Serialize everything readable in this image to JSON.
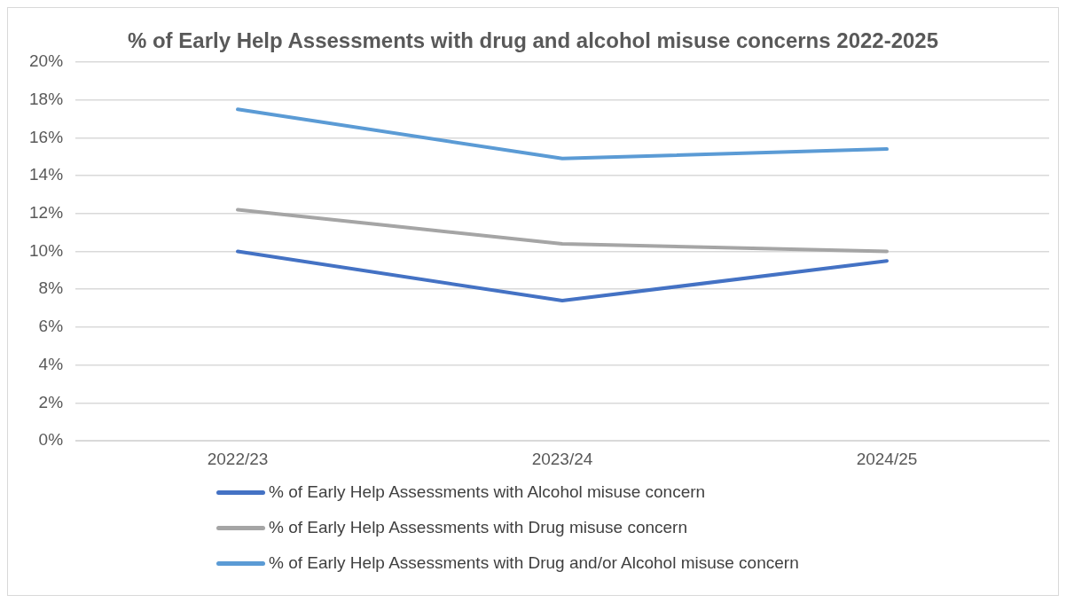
{
  "chart_data": {
    "type": "line",
    "title": "% of Early Help Assessments with drug and alcohol misuse concerns 2022-2025",
    "categories": [
      "2022/23",
      "2023/24",
      "2024/25"
    ],
    "series": [
      {
        "name": "% of Early Help Assessments with Alcohol misuse concern",
        "color": "#4472c4",
        "values": [
          10.0,
          7.4,
          9.5
        ]
      },
      {
        "name": "% of Early Help Assessments with Drug misuse concern",
        "color": "#a5a5a5",
        "values": [
          12.2,
          10.4,
          10.0
        ]
      },
      {
        "name": "% of Early Help Assessments with Drug and/or Alcohol misuse concern",
        "color": "#5b9bd5",
        "values": [
          17.5,
          14.9,
          15.4
        ]
      }
    ],
    "ylim": [
      0,
      20
    ],
    "yticks": [
      {
        "value": 0,
        "label": "0%"
      },
      {
        "value": 2,
        "label": "2%"
      },
      {
        "value": 4,
        "label": "4%"
      },
      {
        "value": 6,
        "label": "6%"
      },
      {
        "value": 8,
        "label": "8%"
      },
      {
        "value": 10,
        "label": "10%"
      },
      {
        "value": 12,
        "label": "12%"
      },
      {
        "value": 14,
        "label": "14%"
      },
      {
        "value": 16,
        "label": "16%"
      },
      {
        "value": 18,
        "label": "18%"
      },
      {
        "value": 20,
        "label": "20%"
      }
    ],
    "grid": "y",
    "legend": "bottom",
    "marker": "none",
    "line_style": "solid"
  }
}
